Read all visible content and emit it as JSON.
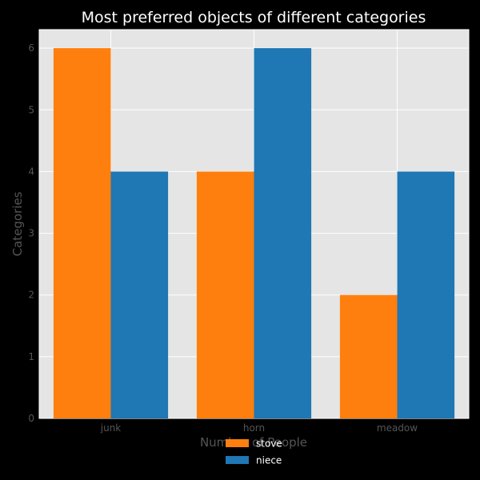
{
  "chart_data": {
    "type": "bar",
    "title": "Most preferred objects of different categories",
    "xlabel": "Number of People",
    "ylabel": "Categories",
    "categories": [
      "junk",
      "horn",
      "meadow"
    ],
    "series": [
      {
        "name": "stove",
        "values": [
          6,
          4,
          2
        ],
        "color": "#ff7f0e"
      },
      {
        "name": "niece",
        "values": [
          4,
          6,
          4
        ],
        "color": "#1f77b4"
      }
    ],
    "ylim": [
      0,
      6.3
    ],
    "yticks": [
      0,
      1,
      2,
      3,
      4,
      5,
      6
    ],
    "grid": true,
    "legend_position": "bottom-center",
    "plot_background": "#e5e5e5",
    "grid_color": "#ffffff"
  }
}
